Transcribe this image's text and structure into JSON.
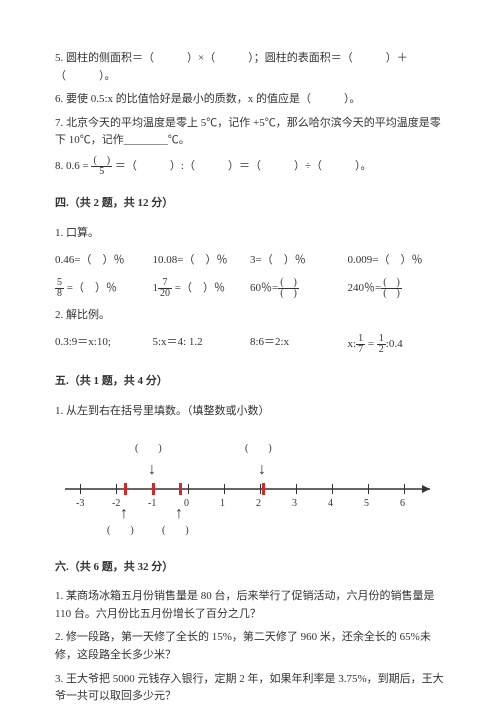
{
  "q5": "5. 圆柱的侧面积＝（　　　）×（　　　）；圆柱的表面积＝（　　　）＋（　　　）。",
  "q6": "6. 要使 0.5:x 的比值恰好是最小的质数，x 的值应是（　　　）。",
  "q7": "7. 北京今天的平均温度是零上 5℃，记作 +5℃，那么哈尔滨今天的平均温度是零下 10℃，记作________℃。",
  "q8_prefix": "8. 0.6 =",
  "q8_num": "(　)",
  "q8_den": "5",
  "q8_rest": " ＝（　　　）:（　　　）＝（　　　）÷（　　　）。",
  "sec4": "四.（共 2 题，共 12 分）",
  "s4_1": "1. 口算。",
  "r1a": "0.46=（　）％",
  "r1b": "10.08=（　）％",
  "r1c": "3=（　）％",
  "r1d": "0.009=（　）％",
  "r2a_pre": "",
  "r2a_n": "5",
  "r2a_d": "8",
  "r2a_post": " =（　）％",
  "r2b_pre": "1",
  "r2b_n": "7",
  "r2b_d": "20",
  "r2b_post": " =（　）％",
  "r2c_pre": "60％=",
  "r2c_n": "(　)",
  "r2c_d": "(　)",
  "r2d_pre": "240％=",
  "r2d_n": "(　)",
  "r2d_d": "(　)",
  "s4_2": "2. 解比例。",
  "p1": "0.3:9＝x:10;",
  "p2": "5:x＝4: 1.2",
  "p3": "8:6＝2:x",
  "p4_pre": "x:",
  "p4_n1": "1",
  "p4_d1": "7",
  "p4_mid": " = ",
  "p4_n2": "1",
  "p4_d2": "2",
  "p4_post": ":0.4",
  "sec5": "五.（共 1 题，共 4 分）",
  "s5_1": "1. 从左到右在括号里填数。（填整数或小数）",
  "nl": {
    "ticks": [
      "-3",
      "-2",
      "-1",
      "0",
      "1",
      "2",
      "3",
      "4",
      "5",
      "6"
    ],
    "top_labels": [
      "(　　)",
      "(　　)"
    ],
    "bot_labels": [
      "(　　)",
      "(　　)"
    ]
  },
  "sec6": "六.（共 6 题，共 32 分）",
  "s6_1": "1. 某商场冰箱五月份销售量是 80 台，后来举行了促销活动，六月份的销售量是 110 台。六月份比五月份增长了百分之几？",
  "s6_2": "2. 修一段路，第一天修了全长的 15%，第二天修了 960 米，还余全长的 65%未修，这段路全长多少米？",
  "s6_3": "3. 王大爷把 5000 元钱存入银行，定期 2 年，如果年利率是 3.75%，到期后，王大爷一共可以取回多少元？"
}
